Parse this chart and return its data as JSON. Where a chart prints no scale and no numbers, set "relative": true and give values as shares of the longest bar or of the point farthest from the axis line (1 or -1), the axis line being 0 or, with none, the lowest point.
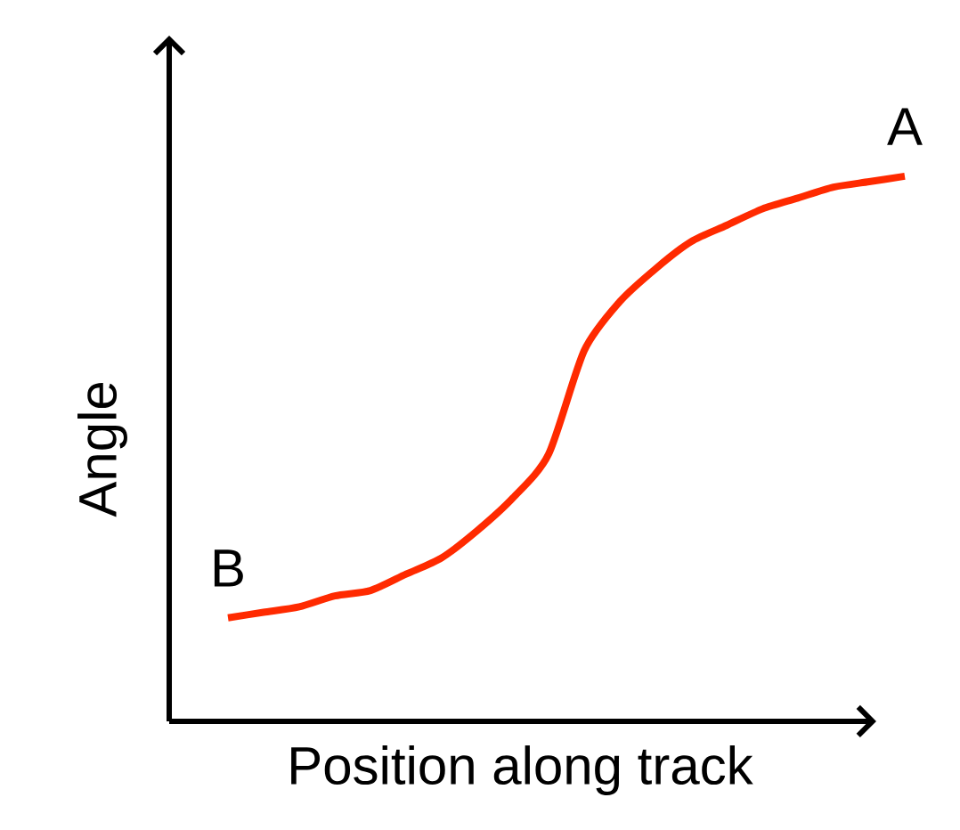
{
  "chart_data": {
    "type": "line",
    "relative": true,
    "xlabel": "Position along track",
    "ylabel": "Angle",
    "categories": [
      null,
      null,
      null,
      null,
      null,
      null,
      null,
      null,
      null,
      null,
      null,
      null,
      null,
      null,
      null,
      null,
      null,
      null,
      null,
      null
    ],
    "series": [
      {
        "color": "#ff2a00",
        "values": [
          0.19,
          0.2,
          0.21,
          0.23,
          0.24,
          0.27,
          0.3,
          0.35,
          0.41,
          0.49,
          0.68,
          0.77,
          0.83,
          0.88,
          0.91,
          0.94,
          0.96,
          0.98,
          0.99,
          1
        ]
      }
    ],
    "annotations": [
      {
        "text": "A",
        "y": 1
      },
      {
        "text": "B",
        "y": 0.19
      }
    ]
  }
}
